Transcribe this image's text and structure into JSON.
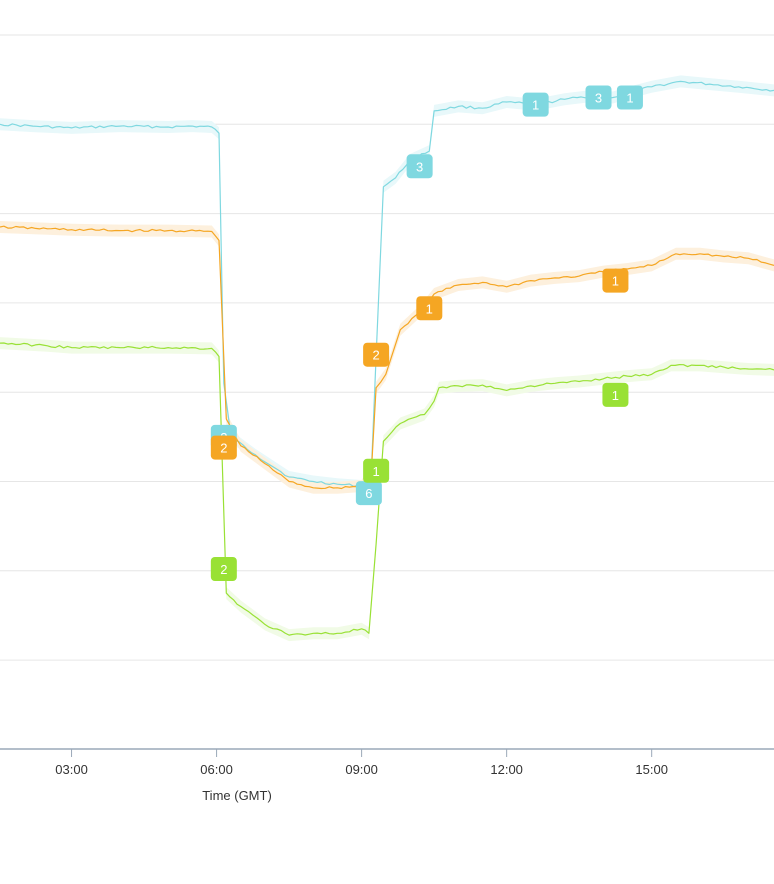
{
  "chart_data": {
    "type": "line",
    "xlabel": "Time (GMT)",
    "x_ticks": [
      "03:00",
      "06:00",
      "09:00",
      "12:00",
      "15:00"
    ],
    "x_tick_hours": [
      3,
      6,
      9,
      12,
      15
    ],
    "xlim_hours": [
      1.52,
      17.53
    ],
    "ylim_gridlines": 8,
    "grid": true,
    "series": [
      {
        "color": "#7fd8e0",
        "band_color": "#e8f8fa",
        "points": [
          [
            1.52,
            1.0
          ],
          [
            2.2,
            1.02
          ],
          [
            3.0,
            1.04
          ],
          [
            4.0,
            1.02
          ],
          [
            5.0,
            1.03
          ],
          [
            5.5,
            1.02
          ],
          [
            5.9,
            1.03
          ],
          [
            6.05,
            1.1
          ],
          [
            6.15,
            3.9
          ],
          [
            6.3,
            4.5
          ],
          [
            6.8,
            4.7
          ],
          [
            7.5,
            4.95
          ],
          [
            8.0,
            5.0
          ],
          [
            8.5,
            5.03
          ],
          [
            9.0,
            5.05
          ],
          [
            9.2,
            4.9
          ],
          [
            9.3,
            3.6
          ],
          [
            9.45,
            1.7
          ],
          [
            9.7,
            1.6
          ],
          [
            10.0,
            1.4
          ],
          [
            10.4,
            1.3
          ],
          [
            10.5,
            0.85
          ],
          [
            11.0,
            0.8
          ],
          [
            11.5,
            0.82
          ],
          [
            12.0,
            0.75
          ],
          [
            12.6,
            0.78
          ],
          [
            13.2,
            0.72
          ],
          [
            13.8,
            0.68
          ],
          [
            14.2,
            0.7
          ],
          [
            14.5,
            0.65
          ],
          [
            15.0,
            0.58
          ],
          [
            15.6,
            0.52
          ],
          [
            16.2,
            0.55
          ],
          [
            16.8,
            0.58
          ],
          [
            17.53,
            0.62
          ]
        ],
        "flags": [
          {
            "label": "2",
            "h": 6.15,
            "v": 4.5
          },
          {
            "label": "6",
            "h": 9.15,
            "v": 5.13
          },
          {
            "label": "3",
            "h": 10.2,
            "v": 1.47
          },
          {
            "label": "1",
            "h": 12.6,
            "v": 0.78
          },
          {
            "label": "3",
            "h": 13.9,
            "v": 0.7
          },
          {
            "label": "1",
            "h": 14.55,
            "v": 0.7
          }
        ]
      },
      {
        "color": "#f5a623",
        "band_color": "#fdf0dd",
        "points": [
          [
            1.52,
            2.15
          ],
          [
            2.5,
            2.17
          ],
          [
            3.0,
            2.18
          ],
          [
            4.0,
            2.19
          ],
          [
            5.0,
            2.19
          ],
          [
            5.9,
            2.2
          ],
          [
            6.05,
            2.3
          ],
          [
            6.2,
            4.3
          ],
          [
            6.5,
            4.6
          ],
          [
            7.0,
            4.8
          ],
          [
            7.5,
            5.0
          ],
          [
            8.0,
            5.07
          ],
          [
            8.5,
            5.07
          ],
          [
            9.0,
            5.05
          ],
          [
            9.2,
            4.9
          ],
          [
            9.3,
            3.95
          ],
          [
            9.5,
            3.8
          ],
          [
            9.8,
            3.3
          ],
          [
            10.2,
            3.1
          ],
          [
            10.5,
            2.9
          ],
          [
            11.0,
            2.8
          ],
          [
            11.5,
            2.77
          ],
          [
            12.0,
            2.82
          ],
          [
            12.5,
            2.75
          ],
          [
            13.0,
            2.72
          ],
          [
            13.5,
            2.7
          ],
          [
            14.0,
            2.65
          ],
          [
            14.5,
            2.62
          ],
          [
            15.0,
            2.58
          ],
          [
            15.5,
            2.45
          ],
          [
            16.0,
            2.45
          ],
          [
            16.5,
            2.48
          ],
          [
            17.0,
            2.5
          ],
          [
            17.53,
            2.58
          ]
        ],
        "flags": [
          {
            "label": "2",
            "h": 6.15,
            "v": 4.62
          },
          {
            "label": "2",
            "h": 9.3,
            "v": 3.58
          },
          {
            "label": "1",
            "h": 10.4,
            "v": 3.06
          },
          {
            "label": "1",
            "h": 14.25,
            "v": 2.75
          }
        ]
      },
      {
        "color": "#99e135",
        "band_color": "#f1fbe6",
        "points": [
          [
            1.52,
            3.45
          ],
          [
            2.5,
            3.48
          ],
          [
            3.0,
            3.5
          ],
          [
            4.0,
            3.5
          ],
          [
            5.0,
            3.5
          ],
          [
            5.9,
            3.51
          ],
          [
            6.05,
            3.6
          ],
          [
            6.2,
            6.25
          ],
          [
            6.5,
            6.4
          ],
          [
            7.0,
            6.6
          ],
          [
            7.5,
            6.72
          ],
          [
            8.0,
            6.7
          ],
          [
            8.5,
            6.7
          ],
          [
            9.0,
            6.65
          ],
          [
            9.15,
            6.7
          ],
          [
            9.3,
            5.7
          ],
          [
            9.45,
            4.55
          ],
          [
            9.8,
            4.35
          ],
          [
            10.3,
            4.25
          ],
          [
            10.5,
            4.1
          ],
          [
            10.6,
            3.95
          ],
          [
            11.0,
            3.93
          ],
          [
            11.5,
            3.92
          ],
          [
            12.0,
            3.98
          ],
          [
            12.5,
            3.93
          ],
          [
            13.0,
            3.9
          ],
          [
            13.5,
            3.88
          ],
          [
            14.0,
            3.85
          ],
          [
            14.5,
            3.82
          ],
          [
            15.0,
            3.8
          ],
          [
            15.4,
            3.7
          ],
          [
            16.0,
            3.7
          ],
          [
            16.5,
            3.72
          ],
          [
            17.0,
            3.74
          ],
          [
            17.53,
            3.75
          ]
        ],
        "flags": [
          {
            "label": "2",
            "h": 6.15,
            "v": 5.98
          },
          {
            "label": "1",
            "h": 9.3,
            "v": 4.88
          },
          {
            "label": "1",
            "h": 14.25,
            "v": 4.03
          }
        ]
      }
    ]
  }
}
